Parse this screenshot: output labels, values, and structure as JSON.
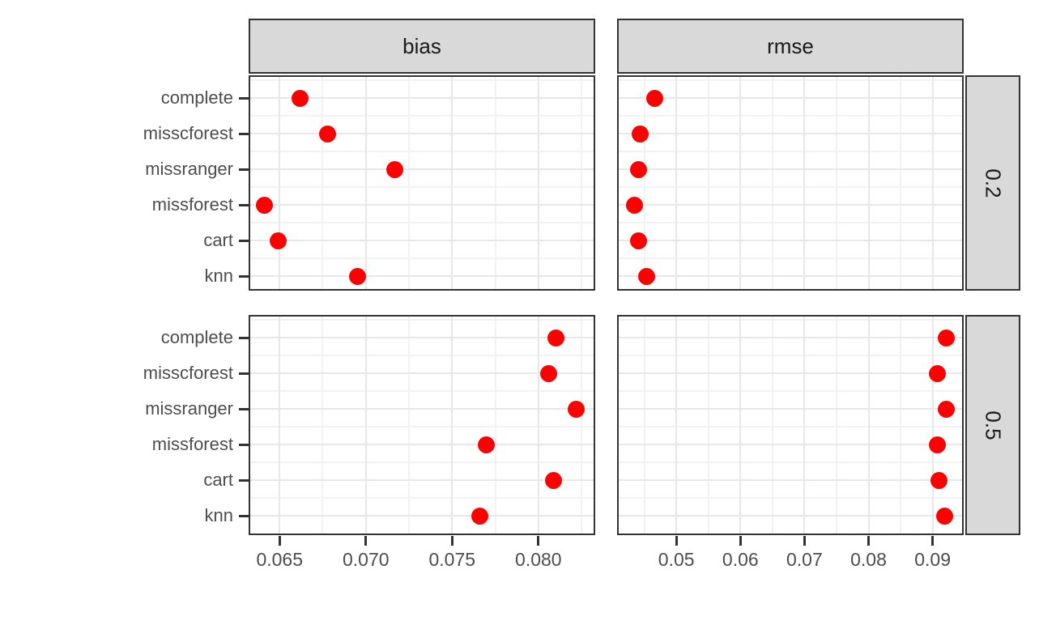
{
  "chart_data": {
    "type": "scatter",
    "title": "",
    "xlabel": "",
    "ylabel": "",
    "legend": "none",
    "grid": true,
    "facet_columns": [
      "bias",
      "rmse"
    ],
    "facet_rows": [
      "0.2",
      "0.5"
    ],
    "categories": [
      "complete",
      "misscforest",
      "missranger",
      "missforest",
      "cart",
      "knn"
    ],
    "x_axes": [
      {
        "column": "bias",
        "domain": [
          0.0633,
          0.0832
        ],
        "ticks": [
          0.065,
          0.07,
          0.075,
          0.08
        ],
        "tick_labels": [
          "0.065",
          "0.070",
          "0.075",
          "0.080"
        ],
        "minor_ticks": [
          0.0675,
          0.0725,
          0.0775,
          0.0825
        ]
      },
      {
        "column": "rmse",
        "domain": [
          0.041,
          0.0946
        ],
        "ticks": [
          0.05,
          0.06,
          0.07,
          0.08,
          0.09
        ],
        "tick_labels": [
          "0.05",
          "0.06",
          "0.07",
          "0.08",
          "0.09"
        ],
        "minor_ticks": [
          0.045,
          0.055,
          0.065,
          0.075,
          0.085
        ]
      }
    ],
    "panels": [
      {
        "column": "bias",
        "row": "0.2",
        "points": {
          "complete": 0.0662,
          "misscforest": 0.0678,
          "missranger": 0.0717,
          "missforest": 0.0641,
          "cart": 0.0649,
          "knn": 0.0695
        }
      },
      {
        "column": "rmse",
        "row": "0.2",
        "points": {
          "complete": 0.0466,
          "misscforest": 0.0443,
          "missranger": 0.0441,
          "missforest": 0.0435,
          "cart": 0.0441,
          "knn": 0.0453
        }
      },
      {
        "column": "bias",
        "row": "0.5",
        "points": {
          "complete": 0.081,
          "misscforest": 0.0806,
          "missranger": 0.0822,
          "missforest": 0.077,
          "cart": 0.0809,
          "knn": 0.0766
        }
      },
      {
        "column": "rmse",
        "row": "0.5",
        "points": {
          "complete": 0.0921,
          "misscforest": 0.0908,
          "missranger": 0.0921,
          "missforest": 0.0907,
          "cart": 0.091,
          "knn": 0.0919
        }
      }
    ],
    "colors": {
      "background": "#FFFFFF",
      "point": "#FF0000",
      "panel_border": "#333333",
      "strip_bg": "#D9D9D9",
      "strip_text": "#1A1A1A",
      "grid_major": "#E7E7E7",
      "grid_minor": "#F2F2F2",
      "axis_text": "#4D4D4D",
      "tick": "#333333"
    }
  }
}
